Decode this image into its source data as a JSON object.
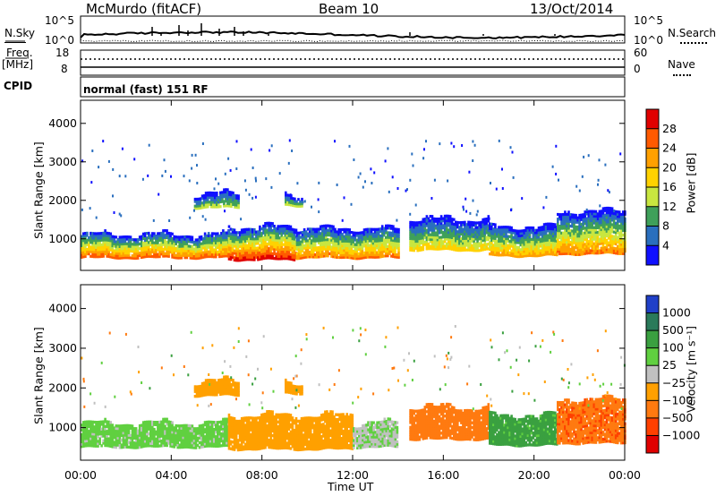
{
  "header": {
    "station": "McMurdo (fitACF)",
    "beam": "Beam 10",
    "date": "13/Oct/2014"
  },
  "noise_panel": {
    "left_label": "N.Sky",
    "right_label": "N.Search",
    "left_ticks": [
      "10^5",
      "10^0"
    ],
    "right_ticks": [
      "10^5",
      "10^0"
    ]
  },
  "freq_panel": {
    "left_label": "Freq.",
    "left_unit": "[MHz]",
    "left_ticks": [
      "18",
      "8"
    ],
    "right_label": "Nave",
    "right_ticks": [
      "60",
      "0"
    ],
    "cpid_label": "CPID"
  },
  "cpid_text": "normal (fast) 151 RF",
  "power_colorbar": {
    "label": "Power [dB]",
    "ticks": [
      "28",
      "24",
      "20",
      "16",
      "12",
      "8",
      "4"
    ],
    "colors": [
      "#e00000",
      "#ff5a00",
      "#ffa000",
      "#ffd200",
      "#c8e640",
      "#3fa05a",
      "#2a6fbe",
      "#1010ff"
    ]
  },
  "velocity_colorbar": {
    "label": "Velocity [m s⁻¹]",
    "ticks": [
      "1000",
      "500",
      "100",
      "25",
      "−25",
      "−100",
      "−500",
      "−1000"
    ],
    "colors": [
      "#2040c8",
      "#2a7a5a",
      "#3aa040",
      "#60d040",
      "#c0c0c0",
      "#ffa000",
      "#ff7a10",
      "#ff4000",
      "#e00000"
    ]
  },
  "chart_data": [
    {
      "type": "heatmap",
      "title": "Power",
      "xlabel": "",
      "ylabel": "Slant Range [km]",
      "xlim": [
        "00:00",
        "24:00"
      ],
      "ylim": [
        180,
        4600
      ],
      "x_ticks": [
        "00:00",
        "04:00",
        "08:00",
        "12:00",
        "16:00",
        "20:00",
        "00:00"
      ],
      "y_ticks": [
        "1000",
        "2000",
        "3000",
        "4000"
      ],
      "colorscale_label": "Power [dB]",
      "regions": [
        {
          "t0": 0.0,
          "t1": 6.5,
          "r0": 500,
          "r1": 1100,
          "peak_db": 26
        },
        {
          "t0": 6.5,
          "t1": 9.5,
          "r0": 450,
          "r1": 1300,
          "peak_db": 30
        },
        {
          "t0": 9.5,
          "t1": 14.0,
          "r0": 500,
          "r1": 1250,
          "peak_db": 24
        },
        {
          "t0": 14.5,
          "t1": 18.0,
          "r0": 700,
          "r1": 1500,
          "peak_db": 18
        },
        {
          "t0": 18.0,
          "t1": 21.0,
          "r0": 550,
          "r1": 1300,
          "peak_db": 22
        },
        {
          "t0": 21.0,
          "t1": 24.0,
          "r0": 600,
          "r1": 1700,
          "peak_db": 24
        },
        {
          "t0": 5.0,
          "t1": 7.0,
          "r0": 1800,
          "r1": 2150,
          "peak_db": 14
        },
        {
          "t0": 9.0,
          "t1": 9.8,
          "r0": 1850,
          "r1": 2100,
          "peak_db": 14
        }
      ]
    },
    {
      "type": "heatmap",
      "title": "Velocity",
      "xlabel": "Time UT",
      "ylabel": "Slant Range [km]",
      "xlim": [
        "00:00",
        "24:00"
      ],
      "ylim": [
        180,
        4600
      ],
      "x_ticks": [
        "00:00",
        "04:00",
        "08:00",
        "12:00",
        "16:00",
        "20:00",
        "00:00"
      ],
      "y_ticks": [
        "1000",
        "2000",
        "3000",
        "4000"
      ],
      "colorscale_label": "Velocity [m s⁻¹]",
      "regions": [
        {
          "t0": 0.0,
          "t1": 6.5,
          "r0": 500,
          "r1": 1100,
          "velocity": 50
        },
        {
          "t0": 6.5,
          "t1": 12.0,
          "r0": 450,
          "r1": 1300,
          "velocity": -60
        },
        {
          "t0": 12.0,
          "t1": 14.0,
          "r0": 500,
          "r1": 1100,
          "velocity": 20
        },
        {
          "t0": 14.5,
          "t1": 18.0,
          "r0": 700,
          "r1": 1500,
          "velocity": -300
        },
        {
          "t0": 18.0,
          "t1": 21.0,
          "r0": 550,
          "r1": 1300,
          "velocity": 150
        },
        {
          "t0": 21.0,
          "t1": 24.0,
          "r0": 600,
          "r1": 1700,
          "velocity": -400
        },
        {
          "t0": 5.0,
          "t1": 7.0,
          "r0": 1800,
          "r1": 2150,
          "velocity": -60
        },
        {
          "t0": 9.0,
          "t1": 9.8,
          "r0": 1850,
          "r1": 2100,
          "velocity": -60
        }
      ]
    }
  ]
}
